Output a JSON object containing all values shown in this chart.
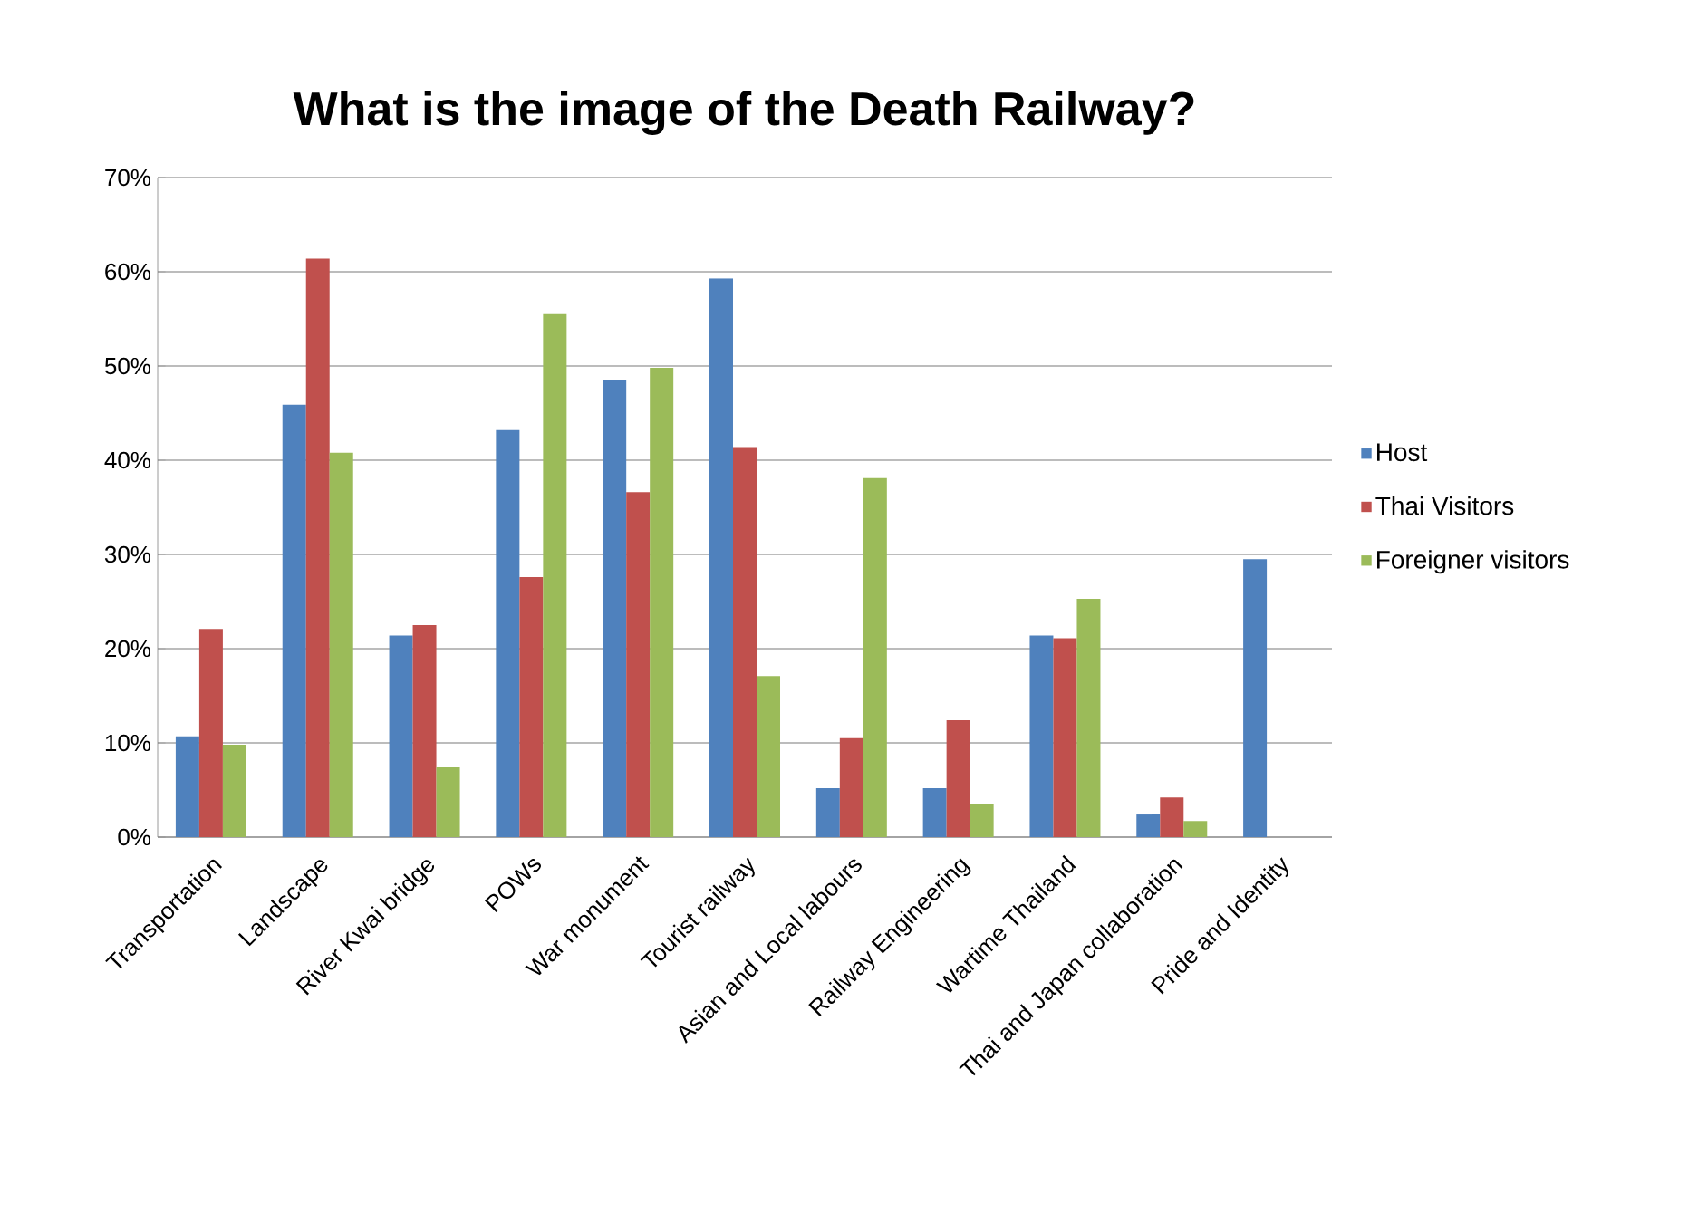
{
  "chart_data": {
    "type": "bar",
    "title": "What is the image of the Death Railway?",
    "categories": [
      "Transportation",
      "Landscape",
      "River Kwai bridge",
      "POWs",
      "War monument",
      "Tourist railway",
      "Asian and Local labours",
      "Railway Engineering",
      "Wartime Thailand",
      "Thai and Japan collaboration",
      "Pride and Identity"
    ],
    "series": [
      {
        "name": "Host",
        "color": "#4f81bd",
        "values": [
          10.7,
          45.9,
          21.4,
          43.2,
          48.5,
          59.3,
          5.2,
          5.2,
          21.4,
          2.4,
          29.5
        ]
      },
      {
        "name": "Thai Visitors",
        "color": "#c0504d",
        "values": [
          22.1,
          61.4,
          22.5,
          27.6,
          36.6,
          41.4,
          10.5,
          12.4,
          21.1,
          4.2,
          0
        ]
      },
      {
        "name": "Foreigner visitors",
        "color": "#9bbb59",
        "values": [
          9.8,
          40.8,
          7.4,
          55.5,
          49.8,
          17.1,
          38.1,
          3.5,
          25.3,
          1.7,
          0
        ]
      }
    ],
    "ylim": [
      0,
      70
    ],
    "yticks": [
      {
        "value": 0,
        "label": "0%"
      },
      {
        "value": 10,
        "label": "10%"
      },
      {
        "value": 20,
        "label": "20%"
      },
      {
        "value": 30,
        "label": "30%"
      },
      {
        "value": 40,
        "label": "40%"
      },
      {
        "value": 50,
        "label": "50%"
      },
      {
        "value": 60,
        "label": "60%"
      },
      {
        "value": 70,
        "label": "70%"
      }
    ],
    "grid": "y",
    "legend": "right"
  }
}
